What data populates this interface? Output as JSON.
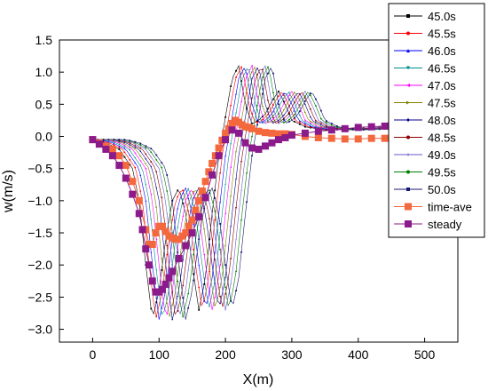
{
  "chart_data": {
    "type": "line",
    "xlabel": "X(m)",
    "ylabel": "w(m/s)",
    "xlim": [
      -50,
      550
    ],
    "ylim": [
      -3.2,
      1.5
    ],
    "xticks": [
      0,
      100,
      200,
      300,
      400,
      500
    ],
    "xtick_labels": [
      "0",
      "100",
      "200",
      "300",
      "400",
      "500"
    ],
    "yticks": [
      1.5,
      1.0,
      0.5,
      0.0,
      -0.5,
      -1.0,
      -1.5,
      -2.0,
      -2.5,
      -3.0
    ],
    "ytick_labels": [
      "1.5",
      "1.0",
      "0.5",
      "0.0",
      "−0.5",
      "−1.0",
      "−1.5",
      "−2.0",
      "−2.5",
      "−3.0"
    ],
    "grid": false,
    "legend_position": "top-right outside",
    "series": [
      {
        "name": "45.0s",
        "color": "#000000",
        "marker": "square",
        "shift": 0
      },
      {
        "name": "45.5s",
        "color": "#ff0000",
        "marker": "circle",
        "shift": 5
      },
      {
        "name": "46.0s",
        "color": "#0000ff",
        "marker": "triangle-up",
        "shift": 10
      },
      {
        "name": "46.5s",
        "color": "#008b8b",
        "marker": "triangle-down",
        "shift": 15
      },
      {
        "name": "47.0s",
        "color": "#ff00ff",
        "marker": "triangle-left",
        "shift": 20
      },
      {
        "name": "47.5s",
        "color": "#808000",
        "marker": "triangle-right",
        "shift": 25
      },
      {
        "name": "48.0s",
        "color": "#00008b",
        "marker": "diamond",
        "shift": 30
      },
      {
        "name": "48.5s",
        "color": "#8b0000",
        "marker": "hexagon",
        "shift": 35
      },
      {
        "name": "49.0s",
        "color": "#6a5acd",
        "marker": "star",
        "shift": 40
      },
      {
        "name": "49.5s",
        "color": "#008000",
        "marker": "circle",
        "shift": 45
      },
      {
        "name": "50.0s",
        "color": "#191970",
        "marker": "square",
        "shift": 50
      }
    ],
    "base_profile": {
      "x": [
        0,
        20,
        40,
        60,
        70,
        80,
        90,
        100,
        110,
        120,
        130,
        140,
        150,
        160,
        170,
        180,
        190,
        200,
        210,
        220,
        230,
        240,
        250,
        260,
        270,
        280,
        290,
        300,
        320,
        350,
        400,
        450
      ],
      "y": [
        -0.05,
        -0.1,
        -0.2,
        -0.5,
        -1.0,
        -2.0,
        -2.85,
        -2.4,
        -1.6,
        -1.0,
        -0.8,
        -1.2,
        -2.0,
        -2.7,
        -2.2,
        -1.2,
        -0.3,
        0.3,
        0.9,
        1.1,
        0.5,
        0.2,
        0.25,
        0.35,
        0.55,
        0.7,
        0.5,
        0.25,
        0.15,
        0.1,
        0.12,
        0.15
      ]
    },
    "time_ave": {
      "name": "time-ave",
      "color": "#f4683e",
      "x": [
        0,
        10,
        20,
        30,
        40,
        50,
        60,
        70,
        80,
        85,
        90,
        95,
        100,
        105,
        110,
        115,
        120,
        125,
        130,
        135,
        140,
        145,
        150,
        155,
        160,
        165,
        170,
        175,
        180,
        185,
        190,
        195,
        200,
        205,
        210,
        215,
        220,
        225,
        230,
        235,
        240,
        250,
        260,
        270,
        280,
        290,
        300,
        320,
        340,
        360,
        380,
        400,
        420,
        440,
        450
      ],
      "y": [
        -0.05,
        -0.1,
        -0.15,
        -0.2,
        -0.3,
        -0.45,
        -0.7,
        -1.0,
        -1.45,
        -1.68,
        -1.68,
        -1.5,
        -1.4,
        -1.4,
        -1.48,
        -1.55,
        -1.58,
        -1.6,
        -1.6,
        -1.55,
        -1.5,
        -1.4,
        -1.3,
        -1.15,
        -1.0,
        -0.85,
        -0.7,
        -0.55,
        -0.42,
        -0.3,
        -0.18,
        -0.06,
        0.05,
        0.12,
        0.2,
        0.25,
        0.22,
        0.18,
        0.15,
        0.14,
        0.12,
        0.08,
        0.06,
        0.05,
        0.04,
        0.04,
        0.03,
        0.0,
        -0.02,
        -0.03,
        -0.04,
        -0.04,
        -0.03,
        -0.03,
        -0.03
      ]
    },
    "steady": {
      "name": "steady",
      "color": "#8b1a8b",
      "x": [
        0,
        10,
        20,
        30,
        40,
        50,
        60,
        70,
        75,
        80,
        85,
        90,
        95,
        100,
        105,
        110,
        115,
        120,
        130,
        140,
        150,
        160,
        170,
        180,
        190,
        200,
        210,
        220,
        230,
        240,
        250,
        260,
        270,
        280,
        290,
        300,
        320,
        340,
        360,
        380,
        400,
        420,
        440,
        450
      ],
      "y": [
        -0.05,
        -0.12,
        -0.2,
        -0.3,
        -0.45,
        -0.65,
        -0.9,
        -1.2,
        -1.45,
        -1.75,
        -2.0,
        -2.25,
        -2.42,
        -2.42,
        -2.38,
        -2.3,
        -2.2,
        -2.1,
        -1.9,
        -1.7,
        -1.5,
        -1.25,
        -0.95,
        -0.6,
        -0.3,
        -0.05,
        0.1,
        0.05,
        -0.1,
        -0.18,
        -0.2,
        -0.15,
        -0.1,
        -0.05,
        -0.02,
        0.02,
        0.05,
        0.08,
        0.1,
        0.12,
        0.14,
        0.15,
        0.16,
        0.17
      ]
    }
  }
}
